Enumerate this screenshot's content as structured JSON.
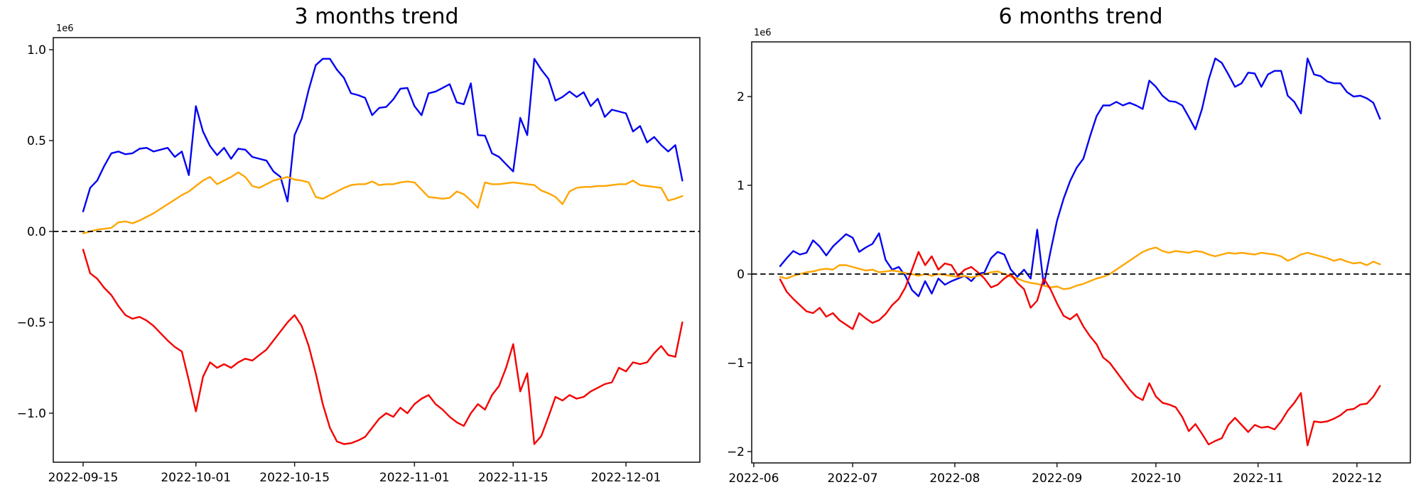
{
  "figure": {
    "background": "#ffffff",
    "axes_color": "#1a1a1a",
    "zero_line_color": "#000000"
  },
  "chart_data": [
    {
      "type": "line",
      "title": "3 months trend",
      "scale_label": "1e6",
      "start_date": "2022-09-15",
      "end_date": "2022-12-09",
      "point_interval_days": 1,
      "grid": false,
      "legend": "none",
      "zero_line": true,
      "xlim_days": [
        -4.23,
        87.48
      ],
      "ylim": [
        -1.2695,
        1.0664
      ],
      "x_ticks": [
        {
          "label": "2022-09-15",
          "day": 0
        },
        {
          "label": "2022-10-01",
          "day": 16
        },
        {
          "label": "2022-10-15",
          "day": 30
        },
        {
          "label": "2022-11-01",
          "day": 47
        },
        {
          "label": "2022-11-15",
          "day": 61
        },
        {
          "label": "2022-12-01",
          "day": 77
        }
      ],
      "y_ticks": [
        {
          "label": "1.0",
          "value": 1.0
        },
        {
          "label": "0.5",
          "value": 0.5
        },
        {
          "label": "0.0",
          "value": 0.0
        },
        {
          "label": "−0.5",
          "value": -0.5
        },
        {
          "label": "−1.0",
          "value": -1.0
        }
      ],
      "series": [
        {
          "name": "blue",
          "color": "#0404f0",
          "values": [
            0.11,
            0.24,
            0.28,
            0.36,
            0.43,
            0.44,
            0.425,
            0.43,
            0.455,
            0.46,
            0.44,
            0.45,
            0.46,
            0.41,
            0.44,
            0.31,
            0.69,
            0.55,
            0.47,
            0.42,
            0.46,
            0.4,
            0.455,
            0.45,
            0.41,
            0.4,
            0.39,
            0.33,
            0.3,
            0.165,
            0.53,
            0.62,
            0.78,
            0.915,
            0.95,
            0.95,
            0.89,
            0.845,
            0.76,
            0.75,
            0.735,
            0.64,
            0.68,
            0.685,
            0.727,
            0.785,
            0.79,
            0.69,
            0.64,
            0.76,
            0.77,
            0.79,
            0.81,
            0.71,
            0.7,
            0.815,
            0.53,
            0.527,
            0.43,
            0.41,
            0.37,
            0.33,
            0.625,
            0.53,
            0.95,
            0.89,
            0.84,
            0.72,
            0.74,
            0.77,
            0.74,
            0.766,
            0.69,
            0.73,
            0.63,
            0.67,
            0.66,
            0.65,
            0.55,
            0.58,
            0.49,
            0.52,
            0.475,
            0.44,
            0.475,
            0.28
          ]
        },
        {
          "name": "orange",
          "color": "#ffa500",
          "values": [
            -0.01,
            0.0,
            0.01,
            0.015,
            0.02,
            0.05,
            0.055,
            0.045,
            0.06,
            0.08,
            0.1,
            0.125,
            0.15,
            0.175,
            0.2,
            0.22,
            0.25,
            0.28,
            0.3,
            0.26,
            0.28,
            0.3,
            0.325,
            0.3,
            0.25,
            0.24,
            0.26,
            0.28,
            0.29,
            0.3,
            0.285,
            0.28,
            0.27,
            0.19,
            0.18,
            0.2,
            0.22,
            0.24,
            0.255,
            0.26,
            0.26,
            0.275,
            0.255,
            0.26,
            0.26,
            0.27,
            0.275,
            0.27,
            0.23,
            0.19,
            0.185,
            0.18,
            0.185,
            0.22,
            0.205,
            0.17,
            0.13,
            0.27,
            0.26,
            0.26,
            0.265,
            0.27,
            0.265,
            0.26,
            0.255,
            0.225,
            0.21,
            0.19,
            0.15,
            0.22,
            0.24,
            0.245,
            0.245,
            0.25,
            0.25,
            0.255,
            0.26,
            0.26,
            0.28,
            0.255,
            0.25,
            0.245,
            0.24,
            0.17,
            0.18,
            0.195
          ]
        },
        {
          "name": "red",
          "color": "#f40000",
          "values": [
            -0.1,
            -0.23,
            -0.26,
            -0.31,
            -0.35,
            -0.41,
            -0.46,
            -0.48,
            -0.47,
            -0.49,
            -0.52,
            -0.56,
            -0.6,
            -0.635,
            -0.66,
            -0.82,
            -0.99,
            -0.8,
            -0.72,
            -0.75,
            -0.73,
            -0.75,
            -0.72,
            -0.7,
            -0.71,
            -0.68,
            -0.65,
            -0.6,
            -0.55,
            -0.5,
            -0.46,
            -0.52,
            -0.63,
            -0.78,
            -0.95,
            -1.08,
            -1.155,
            -1.17,
            -1.165,
            -1.15,
            -1.13,
            -1.08,
            -1.03,
            -1.0,
            -1.02,
            -0.97,
            -1.0,
            -0.95,
            -0.92,
            -0.9,
            -0.95,
            -0.98,
            -1.02,
            -1.05,
            -1.07,
            -1.0,
            -0.95,
            -0.98,
            -0.9,
            -0.85,
            -0.75,
            -0.62,
            -0.88,
            -0.78,
            -1.17,
            -1.125,
            -1.02,
            -0.91,
            -0.93,
            -0.9,
            -0.92,
            -0.91,
            -0.88,
            -0.86,
            -0.84,
            -0.83,
            -0.75,
            -0.77,
            -0.72,
            -0.73,
            -0.72,
            -0.67,
            -0.63,
            -0.68,
            -0.69,
            -0.5
          ]
        }
      ]
    },
    {
      "type": "line",
      "title": "6 months trend",
      "scale_label": "1e6",
      "start_date": "2022-06-09",
      "end_date": "2022-12-08",
      "point_interval_days": 2,
      "grid": false,
      "legend": "none",
      "zero_line": true,
      "xlim_days": [
        -8.62,
        191.2
      ],
      "ylim": [
        -2.128,
        2.616
      ],
      "x_ticks": [
        {
          "label": "2022-06",
          "day": -8
        },
        {
          "label": "2022-07",
          "day": 22
        },
        {
          "label": "2022-08",
          "day": 53
        },
        {
          "label": "2022-09",
          "day": 84
        },
        {
          "label": "2022-10",
          "day": 114
        },
        {
          "label": "2022-11",
          "day": 145
        },
        {
          "label": "2022-12",
          "day": 175
        }
      ],
      "y_ticks": [
        {
          "label": "2",
          "value": 2.0
        },
        {
          "label": "1",
          "value": 1.0
        },
        {
          "label": "0",
          "value": 0.0
        },
        {
          "label": "−1",
          "value": -1.0
        },
        {
          "label": "−2",
          "value": -2.0
        }
      ],
      "series": [
        {
          "name": "blue",
          "color": "#0404f0",
          "values": [
            0.09,
            0.18,
            0.26,
            0.22,
            0.24,
            0.38,
            0.31,
            0.21,
            0.31,
            0.38,
            0.45,
            0.41,
            0.25,
            0.3,
            0.34,
            0.46,
            0.16,
            0.05,
            0.08,
            -0.02,
            -0.18,
            -0.25,
            -0.08,
            -0.22,
            -0.05,
            -0.12,
            -0.08,
            -0.05,
            -0.02,
            -0.08,
            0.0,
            0.02,
            0.18,
            0.25,
            0.22,
            0.05,
            -0.03,
            0.05,
            -0.05,
            0.5,
            -0.13,
            0.25,
            0.6,
            0.85,
            1.05,
            1.2,
            1.3,
            1.55,
            1.78,
            1.9,
            1.9,
            1.94,
            1.9,
            1.93,
            1.9,
            1.86,
            2.18,
            2.11,
            2.01,
            1.95,
            1.94,
            1.9,
            1.77,
            1.63,
            1.86,
            2.19,
            2.43,
            2.38,
            2.25,
            2.11,
            2.15,
            2.27,
            2.26,
            2.11,
            2.25,
            2.29,
            2.29,
            2.01,
            1.94,
            1.81,
            2.43,
            2.25,
            2.23,
            2.17,
            2.15,
            2.15,
            2.05,
            2.0,
            2.01,
            1.98,
            1.93,
            1.75
          ]
        },
        {
          "name": "orange",
          "color": "#ffa500",
          "values": [
            -0.03,
            -0.05,
            -0.02,
            0.0,
            0.02,
            0.03,
            0.05,
            0.06,
            0.05,
            0.1,
            0.1,
            0.08,
            0.06,
            0.04,
            0.05,
            0.02,
            0.03,
            0.04,
            0.03,
            0.01,
            0.0,
            -0.02,
            0.0,
            -0.02,
            0.0,
            -0.01,
            -0.02,
            -0.03,
            -0.02,
            -0.04,
            -0.02,
            0.0,
            0.02,
            0.03,
            0.0,
            -0.03,
            -0.05,
            -0.08,
            -0.1,
            -0.11,
            -0.13,
            -0.15,
            -0.14,
            -0.17,
            -0.16,
            -0.13,
            -0.11,
            -0.08,
            -0.05,
            -0.03,
            0.0,
            0.05,
            0.1,
            0.15,
            0.2,
            0.25,
            0.28,
            0.3,
            0.26,
            0.24,
            0.26,
            0.25,
            0.24,
            0.26,
            0.25,
            0.22,
            0.2,
            0.22,
            0.24,
            0.23,
            0.24,
            0.23,
            0.22,
            0.24,
            0.23,
            0.22,
            0.2,
            0.15,
            0.18,
            0.22,
            0.24,
            0.22,
            0.2,
            0.18,
            0.15,
            0.17,
            0.14,
            0.12,
            0.13,
            0.1,
            0.14,
            0.11
          ]
        },
        {
          "name": "red",
          "color": "#f40000",
          "values": [
            -0.06,
            -0.2,
            -0.28,
            -0.35,
            -0.42,
            -0.44,
            -0.38,
            -0.48,
            -0.44,
            -0.52,
            -0.57,
            -0.62,
            -0.44,
            -0.5,
            -0.55,
            -0.52,
            -0.45,
            -0.35,
            -0.28,
            -0.15,
            0.05,
            0.25,
            0.1,
            0.2,
            0.05,
            0.12,
            0.1,
            -0.02,
            0.05,
            0.08,
            0.02,
            -0.05,
            -0.15,
            -0.12,
            -0.05,
            0.0,
            -0.1,
            -0.17,
            -0.38,
            -0.3,
            -0.05,
            -0.17,
            -0.33,
            -0.47,
            -0.51,
            -0.45,
            -0.59,
            -0.7,
            -0.79,
            -0.94,
            -1.0,
            -1.1,
            -1.2,
            -1.3,
            -1.38,
            -1.42,
            -1.23,
            -1.38,
            -1.45,
            -1.47,
            -1.5,
            -1.61,
            -1.77,
            -1.69,
            -1.8,
            -1.92,
            -1.88,
            -1.85,
            -1.7,
            -1.62,
            -1.7,
            -1.78,
            -1.7,
            -1.73,
            -1.72,
            -1.75,
            -1.66,
            -1.54,
            -1.45,
            -1.34,
            -1.93,
            -1.66,
            -1.67,
            -1.66,
            -1.63,
            -1.59,
            -1.53,
            -1.52,
            -1.47,
            -1.46,
            -1.38,
            -1.26
          ]
        }
      ]
    }
  ]
}
